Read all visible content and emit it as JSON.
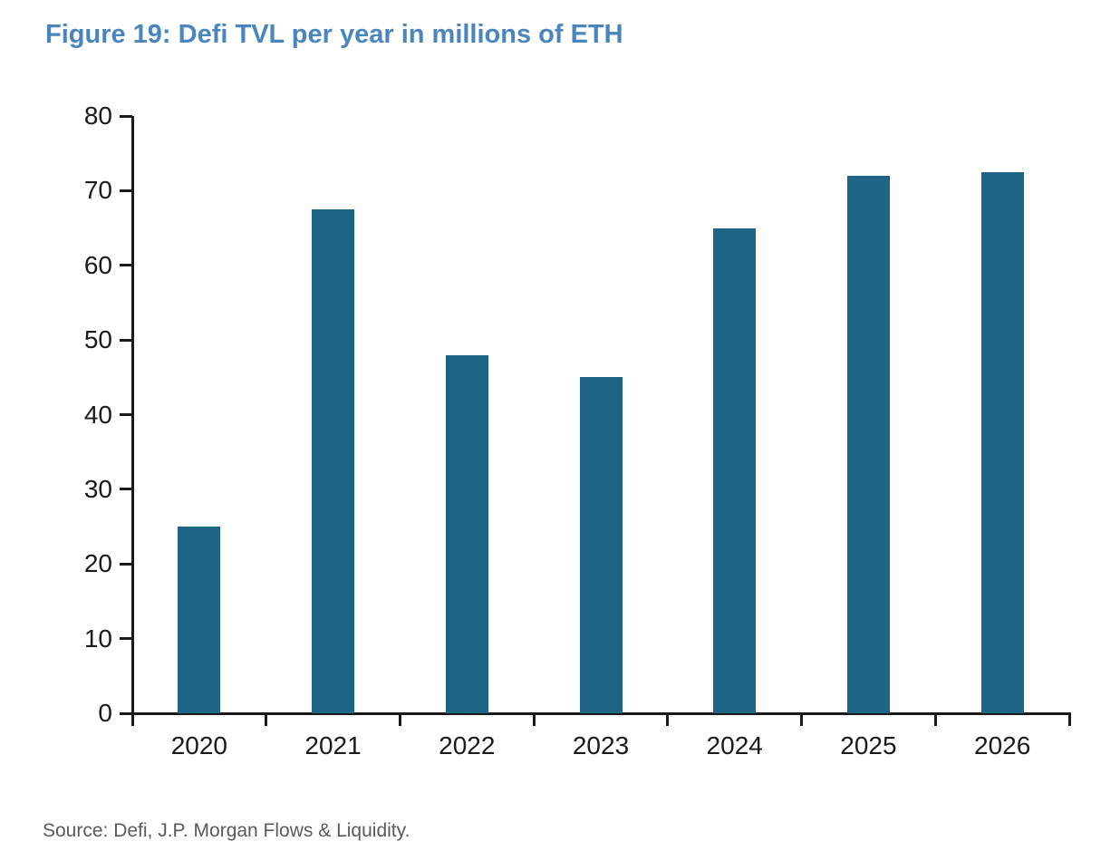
{
  "title": "Figure 19: Defi TVL per year in millions of ETH",
  "source_note": "Source: Defi, J.P. Morgan Flows & Liquidity.",
  "colors": {
    "title_text": "#4a86bd",
    "bar_fill": "#1d6486",
    "axis_line": "#1a1a1a",
    "tick_label_text": "#1a1a1a",
    "source_text": "#5a5a5a"
  },
  "chart_data": {
    "type": "bar",
    "title": "Figure 19: Defi TVL per year in millions of ETH",
    "categories": [
      "2020",
      "2021",
      "2022",
      "2023",
      "2024",
      "2025",
      "2026"
    ],
    "values": [
      25,
      67.5,
      48,
      45,
      65,
      72,
      72.5
    ],
    "xlabel": "",
    "ylabel": "",
    "ylim": [
      0,
      80
    ],
    "ytick_step": 10,
    "yticks": [
      0,
      10,
      20,
      30,
      40,
      50,
      60,
      70,
      80
    ],
    "grid": false,
    "legend": false,
    "units": "millions of ETH"
  }
}
